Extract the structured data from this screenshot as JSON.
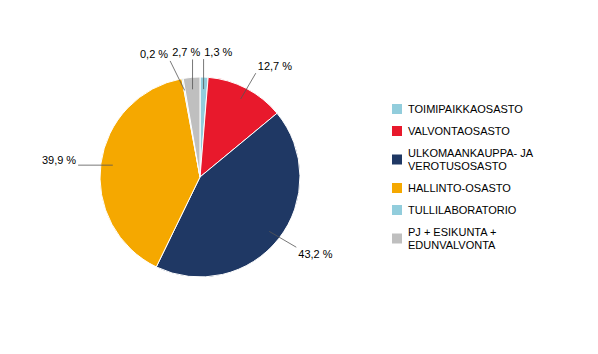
{
  "chart_data": {
    "type": "pie",
    "categories": [
      "TOIMIPAIKKAOSASTO",
      "VALVONTAOSASTO",
      "ULKOMAANKAUPPA- JA\nVEROTUSOSASTO",
      "HALLINTO-OSASTO",
      "TULLILABORATORIO",
      "PJ + ESIKUNTA +\nEDUNVALVONTA"
    ],
    "values": [
      1.3,
      12.7,
      43.2,
      39.9,
      0.2,
      2.7
    ],
    "value_labels": [
      "1,3 %",
      "12,7 %",
      "43,2 %",
      "39,9 %",
      "0,2 %",
      "2,7 %"
    ],
    "colors": [
      "#92CDDC",
      "#E8192C",
      "#1F3864",
      "#F5A800",
      "#92CDDC",
      "#BFBFBF"
    ],
    "data_labels": true,
    "legend": "right"
  }
}
